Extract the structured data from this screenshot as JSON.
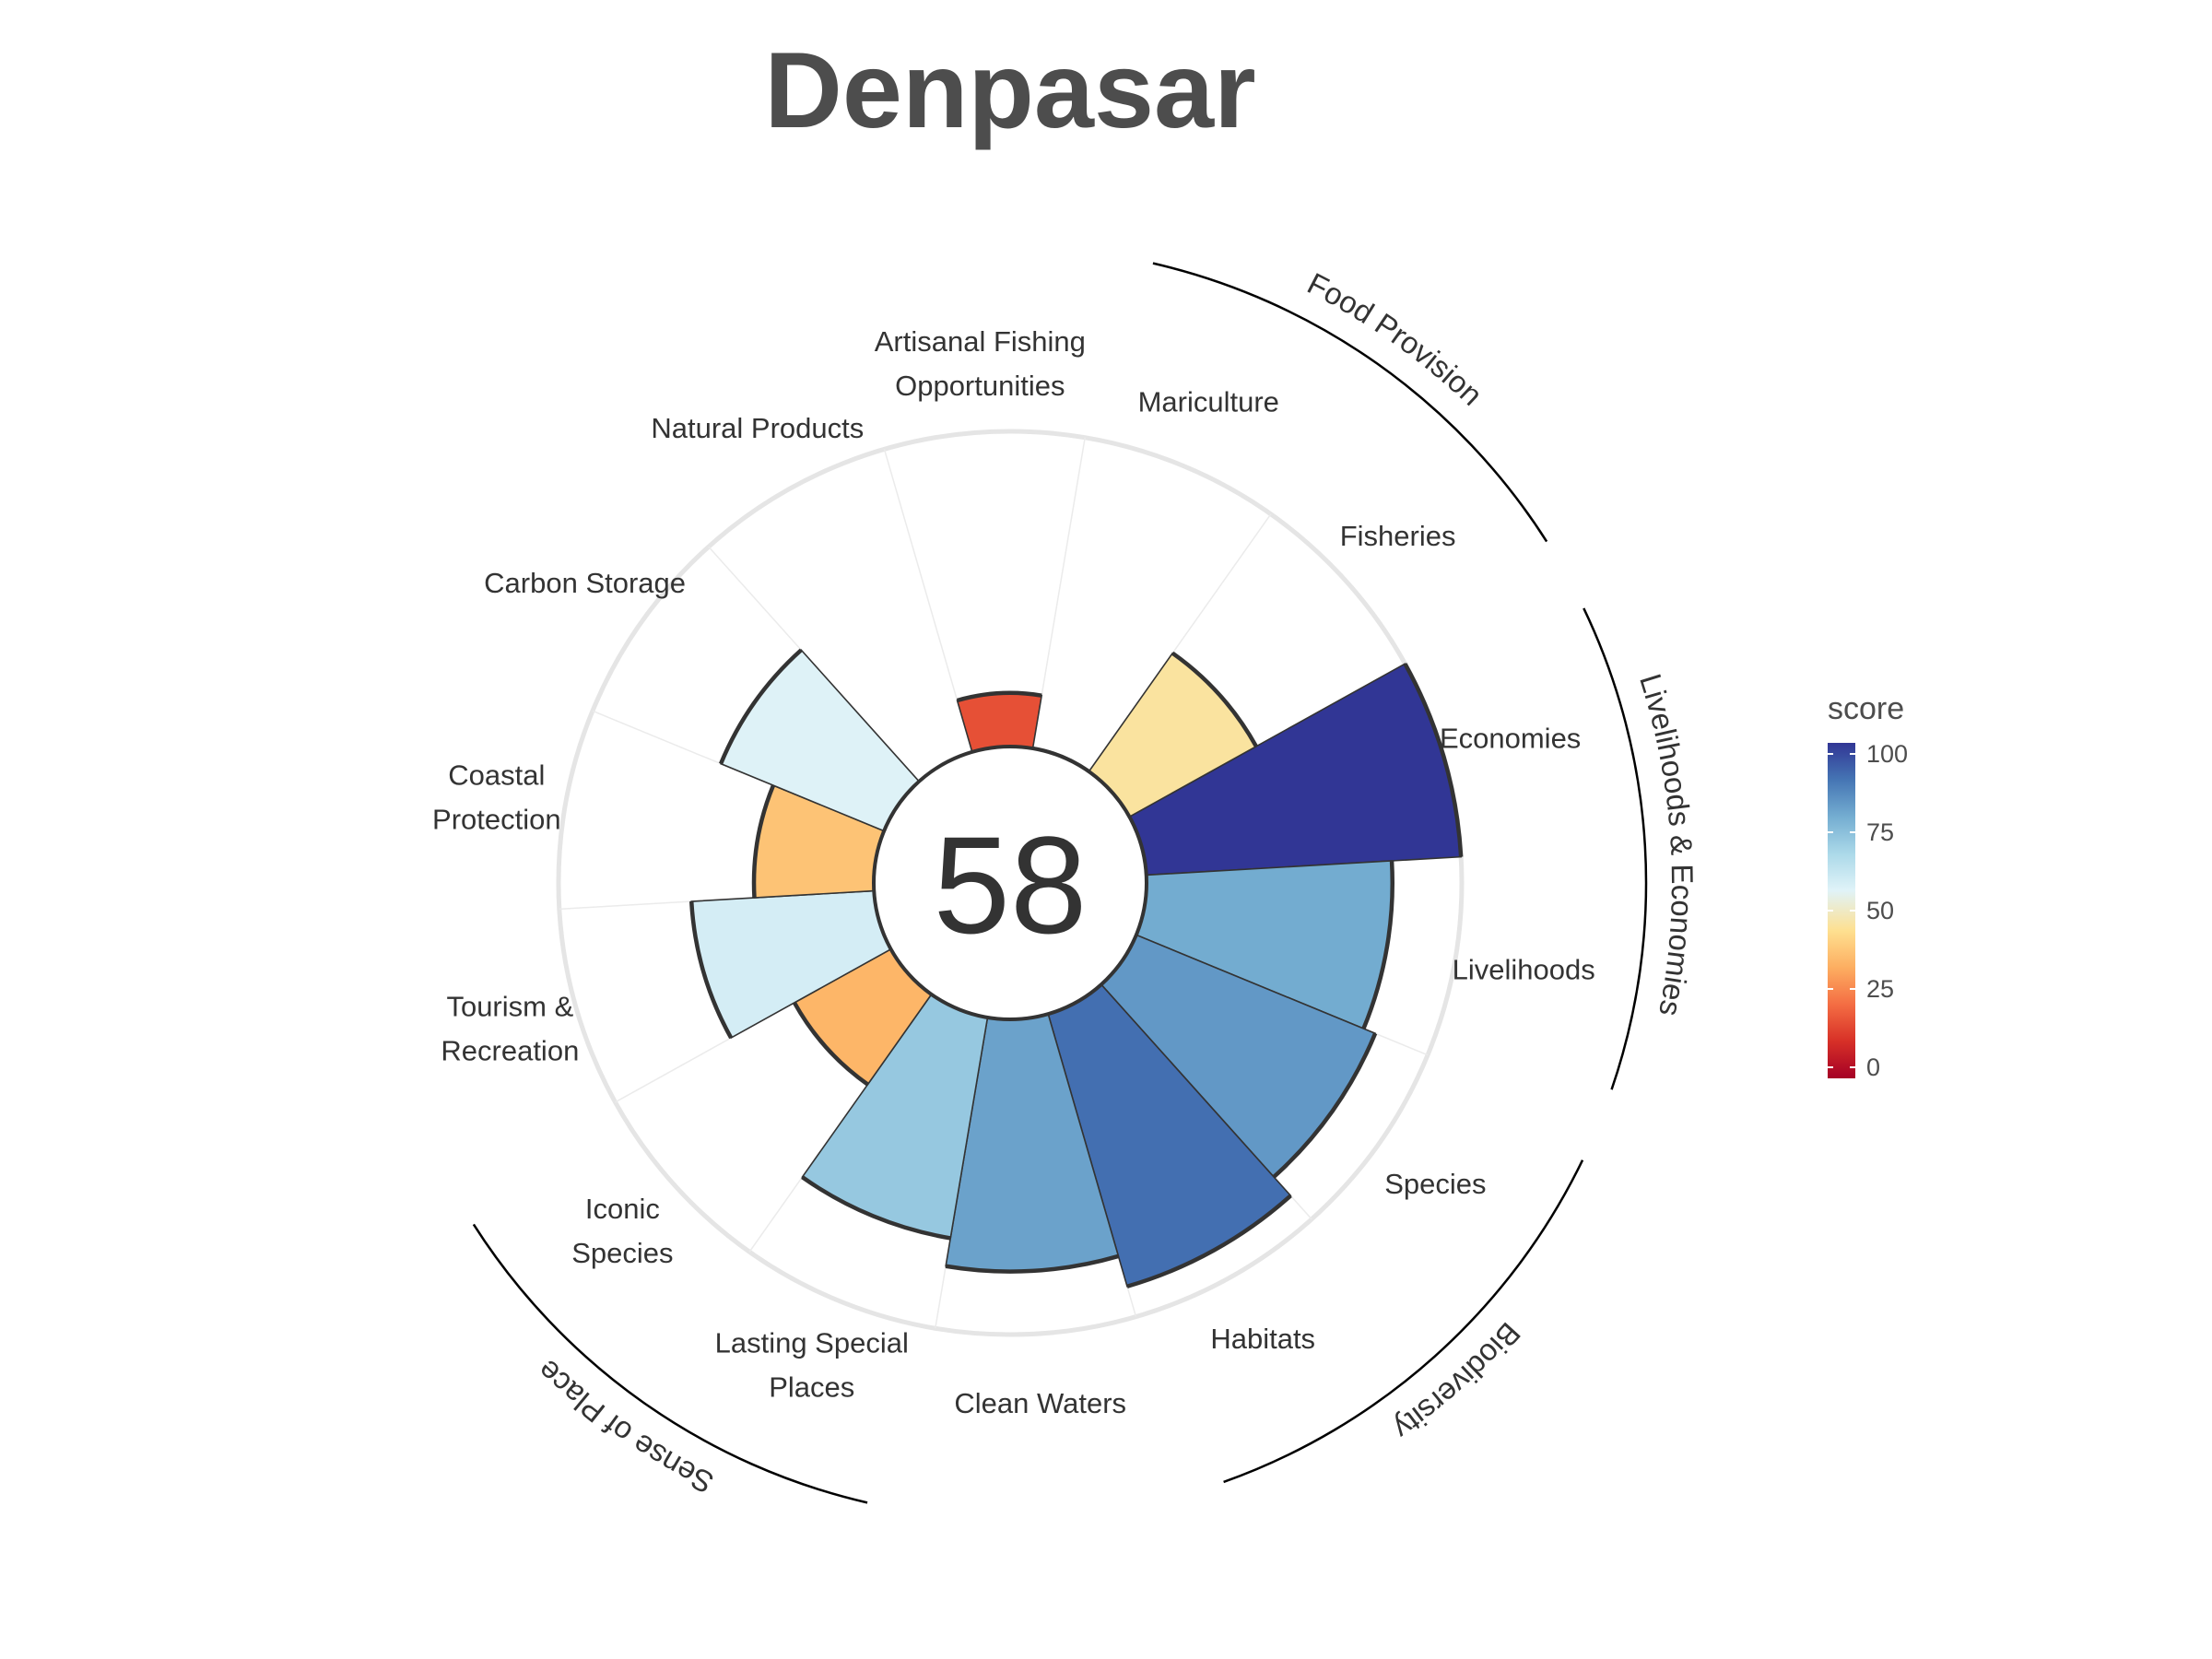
{
  "chart_data": {
    "type": "bar",
    "subtype": "polar",
    "title": "Denpasar",
    "center_value": "58",
    "categories": [
      "Economies",
      "Livelihoods",
      "Species",
      "Habitats",
      "Clean Waters",
      "Lasting Special Places",
      "Iconic Species",
      "Tourism & Recreation",
      "Coastal Protection",
      "Carbon Storage",
      "Natural Products",
      "Artisanal Fishing Opportunities",
      "Mariculture",
      "Fisheries"
    ],
    "labels": [
      [
        "Economies"
      ],
      [
        "Livelihoods"
      ],
      [
        "Species"
      ],
      [
        "Habitats"
      ],
      [
        "Clean Waters"
      ],
      [
        "Lasting Special",
        "Places"
      ],
      [
        "Iconic",
        "Species"
      ],
      [
        "Tourism &",
        "Recreation"
      ],
      [
        "Coastal",
        "Protection"
      ],
      [
        "Carbon Storage"
      ],
      [
        "Natural Products"
      ],
      [
        "Artisanal Fishing",
        "Opportunities"
      ],
      [
        "Mariculture"
      ],
      [
        "Fisheries"
      ]
    ],
    "values": [
      100,
      78,
      82,
      90,
      80,
      71,
      35,
      58,
      38,
      56,
      null,
      17,
      0,
      46
    ],
    "ylim": [
      0,
      100
    ],
    "groups": [
      {
        "name": "Food Provision",
        "members": [
          "Mariculture",
          "Fisheries"
        ]
      },
      {
        "name": "Livelihoods & Economies",
        "members": [
          "Economies",
          "Livelihoods"
        ]
      },
      {
        "name": "Biodiversity",
        "members": [
          "Species",
          "Habitats"
        ]
      },
      {
        "name": "Sense of Place",
        "members": [
          "Lasting Special Places",
          "Iconic Species"
        ]
      }
    ],
    "legend": {
      "title": "score",
      "ticks": [
        "0",
        "25",
        "50",
        "75",
        "100"
      ],
      "placement": "right",
      "colors": [
        "#a50026",
        "#d73027",
        "#f46d43",
        "#fdae61",
        "#fee090",
        "#e0f3f8",
        "#abd9e9",
        "#74add1",
        "#4575b4",
        "#313695"
      ]
    },
    "grid": true
  }
}
